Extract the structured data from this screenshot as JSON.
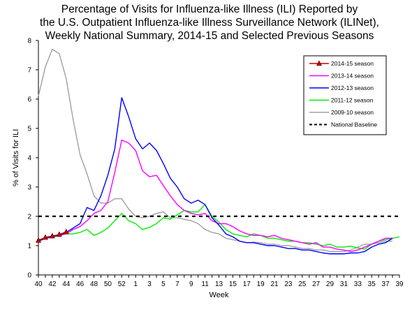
{
  "chart_data": {
    "type": "line",
    "title_lines": [
      "Percentage of Visits for Influenza-like Illness (ILI) Reported by",
      "the U.S. Outpatient Influenza-like Illness Surveillance Network (ILINet),",
      "Weekly National Summary, 2014-15 and Selected Previous Seasons"
    ],
    "xlabel": "Week",
    "ylabel": "% of Visits for ILI",
    "ylim": [
      0,
      8
    ],
    "yticks": [
      0,
      1,
      2,
      3,
      4,
      5,
      6,
      7,
      8
    ],
    "x_tick_labels": [
      "40",
      "42",
      "44",
      "46",
      "48",
      "50",
      "52",
      "1",
      "3",
      "5",
      "7",
      "9",
      "11",
      "13",
      "15",
      "17",
      "19",
      "21",
      "23",
      "25",
      "27",
      "29",
      "31",
      "33",
      "35",
      "37",
      "39"
    ],
    "grid": false,
    "legend_position": "top-right",
    "series": [
      {
        "name": "2014-15 season",
        "color": "#c00000",
        "marker": "triangle",
        "values": [
          1.18,
          1.28,
          1.33,
          1.38,
          1.47
        ]
      },
      {
        "name": "2013-14 season",
        "color": "#ff00ff",
        "values": [
          1.15,
          1.25,
          1.3,
          1.35,
          1.4,
          1.55,
          1.65,
          1.85,
          2.1,
          2.2,
          2.5,
          3.5,
          4.6,
          4.5,
          4.25,
          3.55,
          3.35,
          3.4,
          3.05,
          2.7,
          2.4,
          2.2,
          2.1,
          2.05,
          2.1,
          1.85,
          1.75,
          1.75,
          1.65,
          1.5,
          1.4,
          1.35,
          1.35,
          1.3,
          1.35,
          1.25,
          1.2,
          1.15,
          1.1,
          1.05,
          1.1,
          0.95,
          0.95,
          0.88,
          0.85,
          0.8,
          0.85,
          0.95,
          1.05,
          1.15,
          1.25,
          1.25
        ]
      },
      {
        "name": "2012-13 season",
        "color": "#0000ff",
        "values": [
          1.15,
          1.25,
          1.3,
          1.35,
          1.45,
          1.6,
          1.75,
          2.3,
          2.2,
          2.7,
          3.4,
          4.3,
          6.05,
          5.4,
          4.65,
          4.3,
          4.5,
          4.25,
          3.8,
          3.3,
          3.0,
          2.6,
          2.45,
          2.55,
          2.4,
          1.95,
          1.7,
          1.4,
          1.3,
          1.15,
          1.1,
          1.1,
          1.05,
          1.0,
          1.0,
          0.95,
          0.9,
          0.9,
          0.85,
          0.85,
          0.8,
          0.75,
          0.72,
          0.72,
          0.72,
          0.75,
          0.75,
          0.8,
          0.95,
          1.05,
          1.1,
          1.25
        ]
      },
      {
        "name": "2011-12 season",
        "color": "#00ee00",
        "values": [
          1.2,
          1.25,
          1.3,
          1.35,
          1.4,
          1.4,
          1.45,
          1.55,
          1.35,
          1.45,
          1.6,
          1.85,
          2.1,
          1.85,
          1.75,
          1.55,
          1.62,
          1.75,
          1.95,
          1.9,
          2.05,
          2.2,
          2.15,
          2.15,
          2.4,
          2.0,
          1.8,
          1.55,
          1.4,
          1.35,
          1.3,
          1.4,
          1.35,
          1.25,
          1.25,
          1.2,
          1.15,
          1.15,
          1.1,
          1.1,
          1.05,
          1.0,
          1.05,
          0.95,
          0.95,
          0.98,
          0.92,
          0.88,
          1.05,
          1.15,
          1.2,
          1.25,
          1.3
        ]
      },
      {
        "name": "2009-10 season",
        "color": "#a0a0a0",
        "values": [
          6.1,
          7.1,
          7.7,
          7.55,
          6.7,
          5.3,
          4.1,
          3.45,
          2.7,
          2.45,
          2.45,
          2.6,
          2.6,
          2.25,
          2.0,
          1.95,
          2.0,
          2.1,
          2.15,
          1.95,
          1.95,
          1.9,
          1.85,
          1.75,
          1.55,
          1.45,
          1.4,
          1.25,
          1.2,
          1.15,
          1.1,
          1.12,
          1.1,
          1.05,
          1.05,
          1.0,
          1.0,
          0.95,
          0.9,
          0.9,
          0.85,
          0.85,
          0.8,
          0.8,
          0.8,
          0.85,
          0.95,
          1.05,
          1.05,
          1.1,
          1.15,
          1.15
        ]
      },
      {
        "name": "National Baseline",
        "color": "#000000",
        "dashed": true,
        "constant": 2.0
      }
    ]
  }
}
